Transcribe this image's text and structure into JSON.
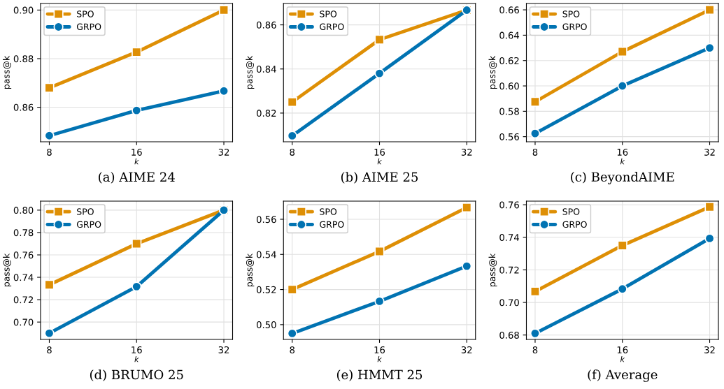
{
  "chart_data": [
    {
      "type": "line",
      "title": "(a) AIME 24",
      "xlabel": "k",
      "ylabel": "pass@k",
      "categories": [
        "8",
        "16",
        "32"
      ],
      "ylim": [
        0.8458,
        0.9027
      ],
      "yticks": [
        {
          "value": 0.86,
          "label": "0.86"
        },
        {
          "value": 0.88,
          "label": "0.88"
        },
        {
          "value": 0.9,
          "label": "0.90"
        }
      ],
      "grid": true,
      "legend": "top left",
      "series": [
        {
          "name": "SPO",
          "color": "#de8f05",
          "marker": "square",
          "values": [
            0.868,
            0.8827,
            0.9
          ]
        },
        {
          "name": "GRPO",
          "color": "#0173b2",
          "marker": "circle",
          "values": [
            0.8483,
            0.8587,
            0.8667
          ]
        }
      ]
    },
    {
      "type": "line",
      "title": "(b) AIME 25",
      "xlabel": "k",
      "ylabel": "pass@k",
      "categories": [
        "8",
        "16",
        "32"
      ],
      "ylim": [
        0.807,
        0.8697
      ],
      "yticks": [
        {
          "value": 0.82,
          "label": "0.82"
        },
        {
          "value": 0.84,
          "label": "0.84"
        },
        {
          "value": 0.86,
          "label": "0.86"
        }
      ],
      "grid": true,
      "legend": "top left",
      "series": [
        {
          "name": "SPO",
          "color": "#de8f05",
          "marker": "square",
          "values": [
            0.825,
            0.8533,
            0.8667
          ]
        },
        {
          "name": "GRPO",
          "color": "#0173b2",
          "marker": "circle",
          "values": [
            0.8097,
            0.838,
            0.8667
          ]
        }
      ]
    },
    {
      "type": "line",
      "title": "(c) BeyondAIME",
      "xlabel": "k",
      "ylabel": "pass@k",
      "categories": [
        "8",
        "16",
        "32"
      ],
      "ylim": [
        0.556,
        0.665
      ],
      "yticks": [
        {
          "value": 0.56,
          "label": "0.56"
        },
        {
          "value": 0.58,
          "label": "0.58"
        },
        {
          "value": 0.6,
          "label": "0.60"
        },
        {
          "value": 0.62,
          "label": "0.62"
        },
        {
          "value": 0.64,
          "label": "0.64"
        },
        {
          "value": 0.66,
          "label": "0.66"
        }
      ],
      "grid": true,
      "legend": "top left",
      "series": [
        {
          "name": "SPO",
          "color": "#de8f05",
          "marker": "square",
          "values": [
            0.5875,
            0.627,
            0.66
          ]
        },
        {
          "name": "GRPO",
          "color": "#0173b2",
          "marker": "circle",
          "values": [
            0.5625,
            0.6,
            0.63
          ]
        }
      ]
    },
    {
      "type": "line",
      "title": "(d) BRUMO 25",
      "xlabel": "k",
      "ylabel": "pass@k",
      "categories": [
        "8",
        "16",
        "32"
      ],
      "ylim": [
        0.6845,
        0.808
      ],
      "yticks": [
        {
          "value": 0.7,
          "label": "0.70"
        },
        {
          "value": 0.72,
          "label": "0.72"
        },
        {
          "value": 0.74,
          "label": "0.74"
        },
        {
          "value": 0.76,
          "label": "0.76"
        },
        {
          "value": 0.78,
          "label": "0.78"
        },
        {
          "value": 0.8,
          "label": "0.80"
        }
      ],
      "grid": true,
      "legend": "top left",
      "series": [
        {
          "name": "SPO",
          "color": "#de8f05",
          "marker": "square",
          "values": [
            0.7333,
            0.77,
            0.8
          ]
        },
        {
          "name": "GRPO",
          "color": "#0173b2",
          "marker": "circle",
          "values": [
            0.69,
            0.7317,
            0.8
          ]
        }
      ]
    },
    {
      "type": "line",
      "title": "(e) HMMT 25",
      "xlabel": "k",
      "ylabel": "pass@k",
      "categories": [
        "8",
        "16",
        "32"
      ],
      "ylim": [
        0.4916,
        0.5703
      ],
      "yticks": [
        {
          "value": 0.5,
          "label": "0.50"
        },
        {
          "value": 0.52,
          "label": "0.52"
        },
        {
          "value": 0.54,
          "label": "0.54"
        },
        {
          "value": 0.56,
          "label": "0.56"
        }
      ],
      "grid": true,
      "legend": "top left",
      "series": [
        {
          "name": "SPO",
          "color": "#de8f05",
          "marker": "square",
          "values": [
            0.52,
            0.5417,
            0.5667
          ]
        },
        {
          "name": "GRPO",
          "color": "#0173b2",
          "marker": "circle",
          "values": [
            0.495,
            0.5133,
            0.5333
          ]
        }
      ]
    },
    {
      "type": "line",
      "title": "(f) Average",
      "xlabel": "k",
      "ylabel": "pass@k",
      "categories": [
        "8",
        "16",
        "32"
      ],
      "ylim": [
        0.6773,
        0.7622
      ],
      "yticks": [
        {
          "value": 0.68,
          "label": "0.68"
        },
        {
          "value": 0.7,
          "label": "0.70"
        },
        {
          "value": 0.72,
          "label": "0.72"
        },
        {
          "value": 0.74,
          "label": "0.74"
        },
        {
          "value": 0.76,
          "label": "0.76"
        }
      ],
      "grid": true,
      "legend": "top left",
      "series": [
        {
          "name": "SPO",
          "color": "#de8f05",
          "marker": "square",
          "values": [
            0.7067,
            0.735,
            0.7587
          ]
        },
        {
          "name": "GRPO",
          "color": "#0173b2",
          "marker": "circle",
          "values": [
            0.681,
            0.7083,
            0.7393
          ]
        }
      ]
    }
  ]
}
